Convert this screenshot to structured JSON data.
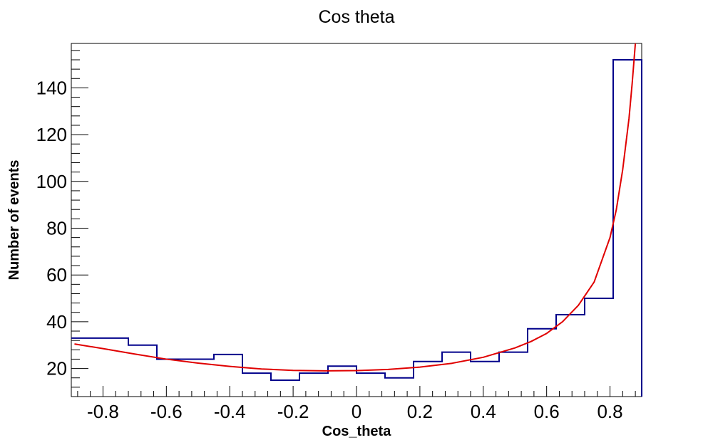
{
  "chart_data": {
    "type": "histogram",
    "title": "Cos theta",
    "xlabel": "Cos_theta",
    "ylabel": "Number of events",
    "xlim": [
      -0.9,
      0.9
    ],
    "ylim": [
      8,
      159
    ],
    "x_ticks": [
      "-0.8",
      "-0.6",
      "-0.4",
      "-0.2",
      "0",
      "0.2",
      "0.4",
      "0.6",
      "0.8"
    ],
    "y_ticks": [
      "20",
      "40",
      "60",
      "80",
      "100",
      "120",
      "140"
    ],
    "grid": false,
    "legend": "none",
    "bin_edges": [
      -0.9,
      -0.81,
      -0.72,
      -0.63,
      -0.54,
      -0.45,
      -0.36,
      -0.27,
      -0.18,
      -0.09,
      0.0,
      0.09,
      0.18,
      0.27,
      0.36,
      0.45,
      0.54,
      0.63,
      0.72,
      0.81,
      0.9
    ],
    "series": [
      {
        "kind": "histogram",
        "color": "#00008b",
        "values": [
          33,
          33,
          30,
          24,
          24,
          26,
          18,
          15,
          18,
          21,
          18,
          16,
          23,
          27,
          23,
          27,
          37,
          43,
          50,
          152
        ]
      },
      {
        "kind": "fit_curve",
        "color": "#e00000",
        "x": [
          -0.89,
          -0.8,
          -0.7,
          -0.6,
          -0.5,
          -0.4,
          -0.3,
          -0.2,
          -0.1,
          0.0,
          0.1,
          0.2,
          0.3,
          0.4,
          0.5,
          0.55,
          0.6,
          0.65,
          0.7,
          0.75,
          0.8,
          0.82,
          0.84,
          0.86,
          0.87,
          0.88
        ],
        "y": [
          30.5,
          28.5,
          26.2,
          24.0,
          22.3,
          20.9,
          19.8,
          19.2,
          19.0,
          19.1,
          19.6,
          20.6,
          22.2,
          24.8,
          28.8,
          31.5,
          35.0,
          40.0,
          47.0,
          57.0,
          76.0,
          88.0,
          105.0,
          127.0,
          142.0,
          159.0
        ]
      }
    ]
  }
}
